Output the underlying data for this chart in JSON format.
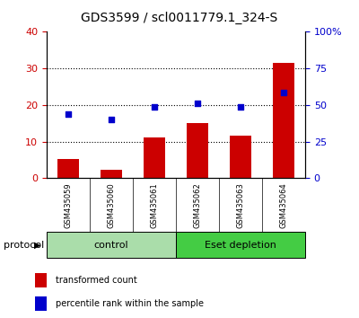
{
  "title": "GDS3599 / scl0011779.1_324-S",
  "categories": [
    "GSM435059",
    "GSM435060",
    "GSM435061",
    "GSM435062",
    "GSM435063",
    "GSM435064"
  ],
  "red_values": [
    5.2,
    2.2,
    11.0,
    15.0,
    11.5,
    31.5
  ],
  "blue_values": [
    17.5,
    16.0,
    19.5,
    20.5,
    19.5,
    23.5
  ],
  "red_color": "#cc0000",
  "blue_color": "#0000cc",
  "left_ylim": [
    0,
    40
  ],
  "right_ylim": [
    0,
    100
  ],
  "left_yticks": [
    0,
    10,
    20,
    30,
    40
  ],
  "right_yticks": [
    0,
    25,
    50,
    75,
    100
  ],
  "right_yticklabels": [
    "0",
    "25",
    "50",
    "75",
    "100%"
  ],
  "groups": [
    {
      "label": "control",
      "start": 0,
      "end": 3,
      "color": "#aaddaa"
    },
    {
      "label": "Eset depletion",
      "start": 3,
      "end": 6,
      "color": "#44cc44"
    }
  ],
  "group_label": "protocol",
  "legend_red": "transformed count",
  "legend_blue": "percentile rank within the sample",
  "bar_width": 0.5,
  "bg_color": "#ffffff",
  "tick_area_color": "#c8c8c8",
  "dotted_grid_color": "#000000",
  "title_fontsize": 10,
  "axis_fontsize": 8,
  "tick_fontsize": 6,
  "legend_fontsize": 7,
  "group_fontsize": 8
}
